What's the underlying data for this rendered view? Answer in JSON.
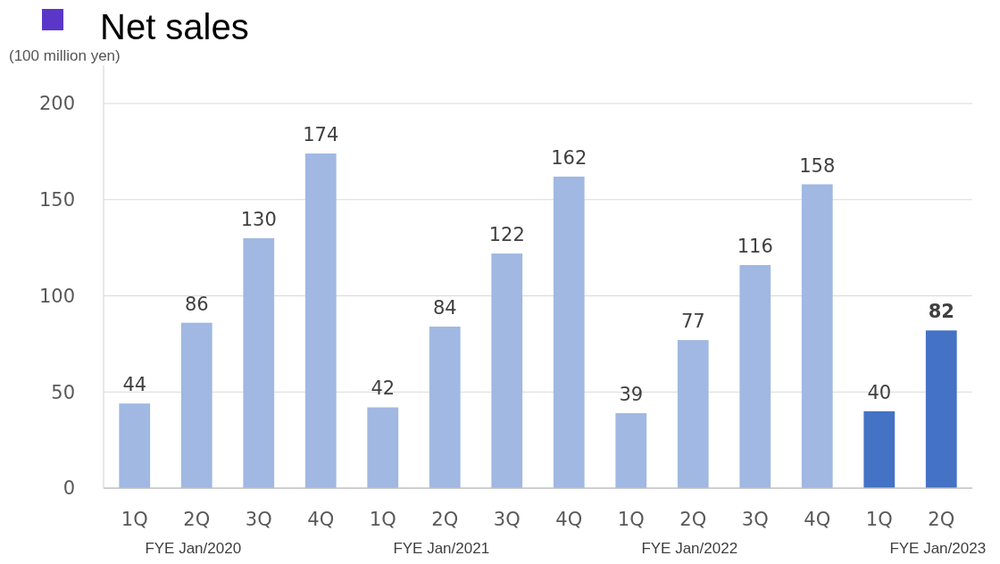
{
  "chart_data": {
    "type": "bar",
    "title": "Net sales",
    "ylabel": "(100 million yen)",
    "categories": [
      "1Q",
      "2Q",
      "3Q",
      "4Q",
      "1Q",
      "2Q",
      "3Q",
      "4Q",
      "1Q",
      "2Q",
      "3Q",
      "4Q",
      "1Q",
      "2Q"
    ],
    "values": [
      44,
      86,
      130,
      174,
      42,
      84,
      122,
      162,
      39,
      77,
      116,
      158,
      40,
      82
    ],
    "colors": [
      "#a0b8e2",
      "#a0b8e2",
      "#a0b8e2",
      "#a0b8e2",
      "#a0b8e2",
      "#a0b8e2",
      "#a0b8e2",
      "#a0b8e2",
      "#a0b8e2",
      "#a0b8e2",
      "#a0b8e2",
      "#a0b8e2",
      "#4472c4",
      "#4472c4"
    ],
    "ylim": [
      0,
      200
    ],
    "yticks": [
      0,
      50,
      100,
      150,
      200
    ],
    "grid": "y",
    "data_labels": true,
    "annotations": [
      "FYE Jan/2020",
      "FYE Jan/2021",
      "FYE Jan/2022",
      "FYE Jan/2023"
    ]
  }
}
